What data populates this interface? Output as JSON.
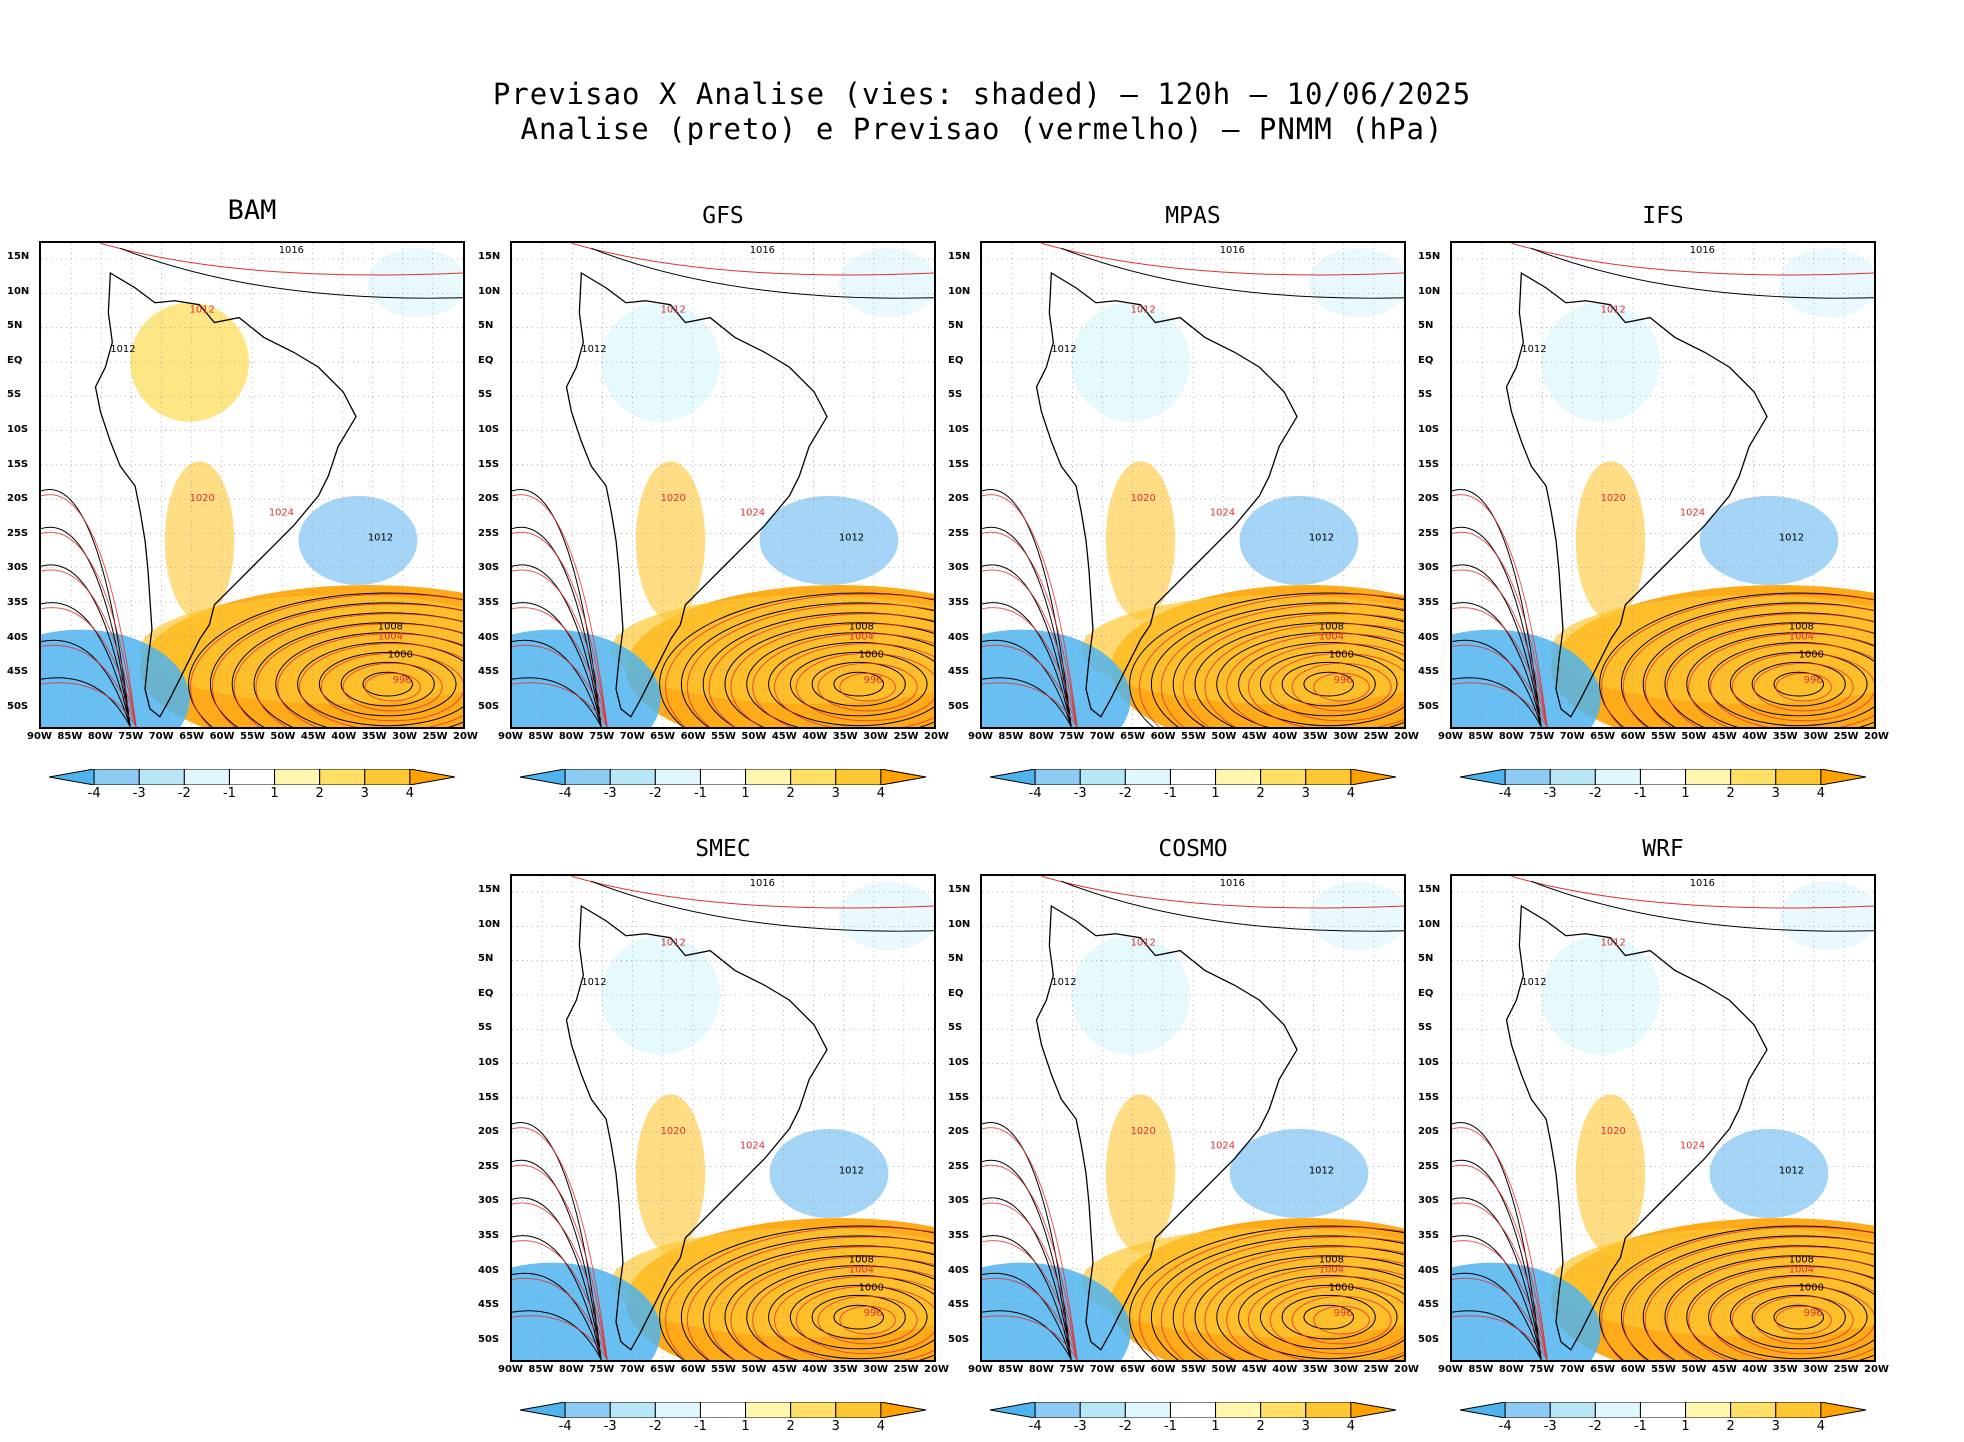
{
  "title": {
    "line1": "Previsao X Analise (vies: shaded) – 120h – 10/06/2025",
    "line2": "Analise (preto) e Previsao (vermelho) – PNMM (hPa)"
  },
  "panels": [
    {
      "name": "BAM"
    },
    {
      "name": "GFS"
    },
    {
      "name": "MPAS"
    },
    {
      "name": "IFS"
    },
    {
      "name": "SMEC"
    },
    {
      "name": "COSMO"
    },
    {
      "name": "WRF"
    }
  ],
  "lat_labels": [
    "15N",
    "10N",
    "5N",
    "EQ",
    "5S",
    "10S",
    "15S",
    "20S",
    "25S",
    "30S",
    "35S",
    "40S",
    "45S",
    "50S"
  ],
  "lon_labels": [
    "90W",
    "85W",
    "80W",
    "75W",
    "70W",
    "65W",
    "60W",
    "55W",
    "50W",
    "45W",
    "40W",
    "35W",
    "30W",
    "25W",
    "20W"
  ],
  "colorbar": {
    "labels": [
      "-4",
      "-3",
      "-2",
      "-1",
      "1",
      "2",
      "3",
      "4"
    ],
    "colors": [
      "#4fb4ee",
      "#8ecbf4",
      "#b9e6f7",
      "#e0f7fd",
      "#ffffff",
      "#fff6b0",
      "#ffe066",
      "#ffc733",
      "#ffa200"
    ]
  },
  "line_colors": {
    "analysis": "#000000",
    "forecast": "#e03030"
  },
  "isobar_labels": [
    "1020",
    "1016",
    "1012",
    "1024",
    "1008",
    "1004",
    "1000",
    "996"
  ]
}
